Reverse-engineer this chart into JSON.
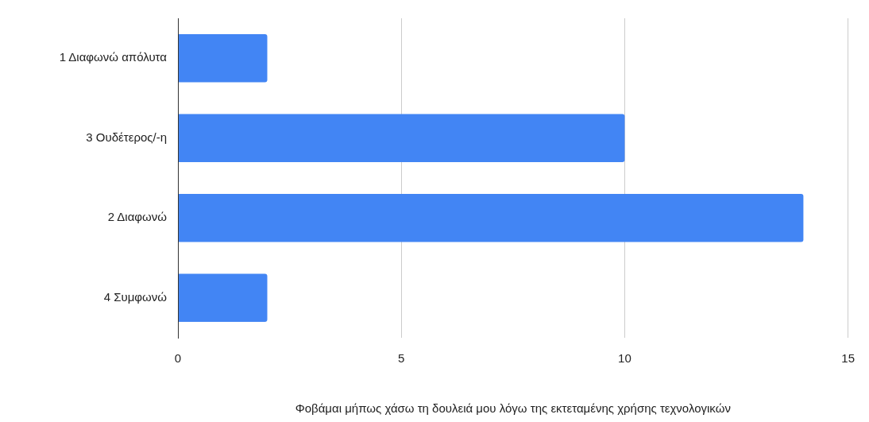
{
  "chart_data": {
    "type": "bar",
    "orientation": "horizontal",
    "categories": [
      "1 Διαφωνώ απόλυτα",
      "3 Ουδέτερος/-η",
      "2 Διαφωνώ",
      "4 Συμφωνώ"
    ],
    "values": [
      2,
      10,
      14,
      2
    ],
    "color": "#4285f4",
    "xlim": [
      0,
      15
    ],
    "xticks": [
      0,
      5,
      10,
      15
    ],
    "grid": "x",
    "xlabel": "Φοβάμαι μήπως χάσω τη δουλειά μου λόγω της εκτεταμένης χρήσης τεχνολογικών"
  }
}
